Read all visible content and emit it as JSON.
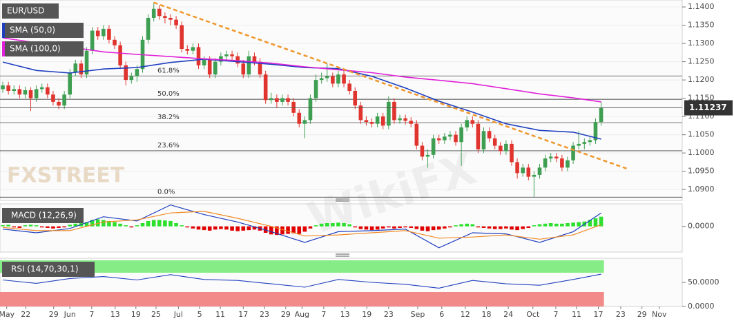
{
  "chart_data": {
    "type": "candlestick",
    "instrument": "EUR/USD",
    "up_color": "#3e9e52",
    "down_color": "#e0342e",
    "grid": true,
    "xlim": [
      -0.5,
      121.5
    ],
    "xticks": [
      {
        "value": 0.7,
        "label": "May"
      },
      {
        "value": 4.1,
        "label": "22"
      },
      {
        "value": 9.1,
        "label": "29"
      },
      {
        "value": 12.0,
        "label": "Jun"
      },
      {
        "value": 15.9,
        "label": "7"
      },
      {
        "value": 20.1,
        "label": "13"
      },
      {
        "value": 23.8,
        "label": "19"
      },
      {
        "value": 27.4,
        "label": "25"
      },
      {
        "value": 31.4,
        "label": "Jul"
      },
      {
        "value": 35.2,
        "label": "5"
      },
      {
        "value": 38.9,
        "label": "11"
      },
      {
        "value": 43.0,
        "label": "17"
      },
      {
        "value": 46.8,
        "label": "23"
      },
      {
        "value": 50.6,
        "label": "29"
      },
      {
        "value": 53.5,
        "label": "Aug"
      },
      {
        "value": 57.4,
        "label": "7"
      },
      {
        "value": 61.2,
        "label": "13"
      },
      {
        "value": 65.1,
        "label": "19"
      },
      {
        "value": 69.0,
        "label": "23"
      },
      {
        "value": 74.2,
        "label": "Sep"
      },
      {
        "value": 78.5,
        "label": "6"
      },
      {
        "value": 82.7,
        "label": "12"
      },
      {
        "value": 86.5,
        "label": "18"
      },
      {
        "value": 90.4,
        "label": "24"
      },
      {
        "value": 94.8,
        "label": "Oct"
      },
      {
        "value": 98.9,
        "label": "7"
      },
      {
        "value": 102.6,
        "label": "11"
      },
      {
        "value": 106.5,
        "label": "17"
      },
      {
        "value": 110.5,
        "label": "23"
      },
      {
        "value": 114.3,
        "label": "29"
      },
      {
        "value": 117.4,
        "label": "Nov"
      }
    ],
    "ylim": [
      1.0872,
      1.1419
    ],
    "yticks": [
      {
        "value": 1.09,
        "label": "1.0900"
      },
      {
        "value": 1.095,
        "label": "1.0950"
      },
      {
        "value": 1.1,
        "label": "1.1000"
      },
      {
        "value": 1.105,
        "label": "1.1050"
      },
      {
        "value": 1.11,
        "label": "1.1100"
      },
      {
        "value": 1.115,
        "label": "1.1150"
      },
      {
        "value": 1.12,
        "label": "1.1200"
      },
      {
        "value": 1.125,
        "label": "1.1250"
      },
      {
        "value": 1.13,
        "label": "1.1300"
      },
      {
        "value": 1.135,
        "label": "1.1350"
      },
      {
        "value": 1.14,
        "label": "1.1400"
      }
    ],
    "ohlc": [
      [
        1.1175,
        1.1195,
        1.1165,
        1.1185
      ],
      [
        1.1185,
        1.1195,
        1.116,
        1.117
      ],
      [
        1.117,
        1.1185,
        1.116,
        1.1175
      ],
      [
        1.1175,
        1.1185,
        1.115,
        1.116
      ],
      [
        1.116,
        1.1182,
        1.115,
        1.1172
      ],
      [
        1.1172,
        1.118,
        1.1115,
        1.115
      ],
      [
        1.115,
        1.1185,
        1.114,
        1.1175
      ],
      [
        1.1175,
        1.119,
        1.1165,
        1.118
      ],
      [
        1.118,
        1.119,
        1.115,
        1.116
      ],
      [
        1.116,
        1.117,
        1.113,
        1.114
      ],
      [
        1.114,
        1.115,
        1.112,
        1.113
      ],
      [
        1.113,
        1.117,
        1.112,
        1.116
      ],
      [
        1.116,
        1.123,
        1.115,
        1.122
      ],
      [
        1.122,
        1.1255,
        1.121,
        1.1245
      ],
      [
        1.1245,
        1.1255,
        1.1205,
        1.1215
      ],
      [
        1.1215,
        1.129,
        1.1205,
        1.128
      ],
      [
        1.128,
        1.1345,
        1.127,
        1.1335
      ],
      [
        1.1335,
        1.1345,
        1.131,
        1.132
      ],
      [
        1.132,
        1.135,
        1.131,
        1.134
      ],
      [
        1.134,
        1.135,
        1.13,
        1.131
      ],
      [
        1.131,
        1.132,
        1.1285,
        1.1295
      ],
      [
        1.1295,
        1.1305,
        1.123,
        1.124
      ],
      [
        1.124,
        1.125,
        1.1185,
        1.12
      ],
      [
        1.12,
        1.122,
        1.119,
        1.121
      ],
      [
        1.121,
        1.124,
        1.1195,
        1.123
      ],
      [
        1.123,
        1.132,
        1.122,
        1.131
      ],
      [
        1.131,
        1.138,
        1.13,
        1.137
      ],
      [
        1.137,
        1.1412,
        1.136,
        1.1395
      ],
      [
        1.1395,
        1.1405,
        1.1365,
        1.1375
      ],
      [
        1.1375,
        1.1385,
        1.1355,
        1.137
      ],
      [
        1.137,
        1.138,
        1.135,
        1.1365
      ],
      [
        1.1365,
        1.1375,
        1.134,
        1.135
      ],
      [
        1.135,
        1.136,
        1.1275,
        1.1285
      ],
      [
        1.1285,
        1.1295,
        1.127,
        1.128
      ],
      [
        1.128,
        1.13,
        1.127,
        1.129
      ],
      [
        1.129,
        1.13,
        1.123,
        1.124
      ],
      [
        1.124,
        1.1265,
        1.123,
        1.1255
      ],
      [
        1.1255,
        1.1265,
        1.1205,
        1.1215
      ],
      [
        1.1215,
        1.126,
        1.1205,
        1.125
      ],
      [
        1.125,
        1.1275,
        1.124,
        1.1265
      ],
      [
        1.1265,
        1.128,
        1.1255,
        1.127
      ],
      [
        1.127,
        1.128,
        1.1255,
        1.1265
      ],
      [
        1.1265,
        1.1275,
        1.1235,
        1.1245
      ],
      [
        1.1245,
        1.1255,
        1.1205,
        1.1215
      ],
      [
        1.1215,
        1.128,
        1.1205,
        1.1265
      ],
      [
        1.1265,
        1.1275,
        1.124,
        1.125
      ],
      [
        1.125,
        1.126,
        1.1205,
        1.1215
      ],
      [
        1.1215,
        1.1225,
        1.1135,
        1.1145
      ],
      [
        1.1145,
        1.1165,
        1.1135,
        1.115
      ],
      [
        1.115,
        1.116,
        1.1125,
        1.114
      ],
      [
        1.114,
        1.116,
        1.113,
        1.115
      ],
      [
        1.115,
        1.116,
        1.113,
        1.114
      ],
      [
        1.114,
        1.115,
        1.11,
        1.111
      ],
      [
        1.111,
        1.112,
        1.107,
        1.108
      ],
      [
        1.108,
        1.11,
        1.104,
        1.109
      ],
      [
        1.109,
        1.116,
        1.108,
        1.115
      ],
      [
        1.115,
        1.1215,
        1.114,
        1.12
      ],
      [
        1.12,
        1.122,
        1.119,
        1.1205
      ],
      [
        1.1205,
        1.1245,
        1.1195,
        1.121
      ],
      [
        1.121,
        1.122,
        1.118,
        1.119
      ],
      [
        1.119,
        1.1225,
        1.118,
        1.1215
      ],
      [
        1.1215,
        1.1225,
        1.118,
        1.119
      ],
      [
        1.119,
        1.12,
        1.116,
        1.117
      ],
      [
        1.117,
        1.118,
        1.112,
        1.113
      ],
      [
        1.113,
        1.114,
        1.108,
        1.109
      ],
      [
        1.109,
        1.11,
        1.1075,
        1.1085
      ],
      [
        1.1085,
        1.1095,
        1.107,
        1.108
      ],
      [
        1.108,
        1.111,
        1.107,
        1.11
      ],
      [
        1.11,
        1.111,
        1.1065,
        1.1075
      ],
      [
        1.1075,
        1.1155,
        1.1065,
        1.114
      ],
      [
        1.114,
        1.115,
        1.108,
        1.109
      ],
      [
        1.109,
        1.1105,
        1.108,
        1.1095
      ],
      [
        1.1095,
        1.1105,
        1.1078,
        1.1088
      ],
      [
        1.1088,
        1.1098,
        1.107,
        1.108
      ],
      [
        1.108,
        1.109,
        1.101,
        1.102
      ],
      [
        1.102,
        1.103,
        1.098,
        1.099
      ],
      [
        1.099,
        1.101,
        1.096,
        1.0995
      ],
      [
        1.0995,
        1.105,
        1.0985,
        1.104
      ],
      [
        1.104,
        1.105,
        1.1025,
        1.1035
      ],
      [
        1.1035,
        1.1055,
        1.1025,
        1.1045
      ],
      [
        1.1045,
        1.106,
        1.1035,
        1.105
      ],
      [
        1.105,
        1.106,
        1.102,
        1.103
      ],
      [
        1.103,
        1.108,
        1.0965,
        1.107
      ],
      [
        1.107,
        1.11,
        1.106,
        1.109
      ],
      [
        1.109,
        1.11,
        1.107,
        1.108
      ],
      [
        1.108,
        1.109,
        1.1,
        1.101
      ],
      [
        1.101,
        1.107,
        1.1,
        1.106
      ],
      [
        1.106,
        1.107,
        1.103,
        1.104
      ],
      [
        1.104,
        1.105,
        1.101,
        1.102
      ],
      [
        1.102,
        1.103,
        1.0995,
        1.1005
      ],
      [
        1.1005,
        1.1035,
        1.0995,
        1.1025
      ],
      [
        1.1025,
        1.1035,
        1.0965,
        1.0975
      ],
      [
        1.0975,
        1.0985,
        1.093,
        1.0945
      ],
      [
        1.0945,
        1.097,
        1.0935,
        1.096
      ],
      [
        1.096,
        1.097,
        1.0925,
        1.0935
      ],
      [
        1.0935,
        1.095,
        1.088,
        1.094
      ],
      [
        1.094,
        1.097,
        1.093,
        1.096
      ],
      [
        1.096,
        1.0995,
        1.095,
        1.0985
      ],
      [
        1.0985,
        1.1,
        1.0975,
        1.099
      ],
      [
        1.099,
        1.1,
        1.0975,
        1.0985
      ],
      [
        1.0985,
        1.0995,
        1.095,
        1.096
      ],
      [
        1.096,
        1.099,
        1.095,
        1.098
      ],
      [
        1.098,
        1.103,
        1.097,
        1.102
      ],
      [
        1.102,
        1.106,
        1.101,
        1.1025
      ],
      [
        1.1025,
        1.104,
        1.101,
        1.103
      ],
      [
        1.103,
        1.1045,
        1.102,
        1.1035
      ],
      [
        1.1035,
        1.1095,
        1.1025,
        1.1085
      ],
      [
        1.1085,
        1.114,
        1.1075,
        1.11237
      ]
    ],
    "overlays": [
      {
        "name": "SMA (50,0)",
        "color": "#1f3fbf",
        "x": [
          0,
          6,
          12,
          18,
          24,
          30,
          36,
          42,
          48,
          54,
          60,
          66,
          72,
          78,
          84,
          90,
          96,
          102,
          107
        ],
        "values": [
          1.1249,
          1.1226,
          1.1219,
          1.123,
          1.1234,
          1.1248,
          1.1257,
          1.125,
          1.1243,
          1.1234,
          1.1231,
          1.121,
          1.1178,
          1.1142,
          1.1112,
          1.108,
          1.1062,
          1.1057,
          1.1038
        ]
      },
      {
        "name": "SMA (100,0)",
        "color": "#e020d8",
        "x": [
          0,
          6,
          12,
          18,
          24,
          30,
          36,
          42,
          48,
          54,
          60,
          66,
          72,
          78,
          84,
          90,
          96,
          102,
          107
        ],
        "values": [
          1.1315,
          1.1302,
          1.129,
          1.1277,
          1.127,
          1.1264,
          1.1258,
          1.1253,
          1.1246,
          1.1236,
          1.1228,
          1.122,
          1.1208,
          1.1199,
          1.119,
          1.1176,
          1.1162,
          1.1151,
          1.114
        ]
      }
    ],
    "trendline": {
      "color": "#f0962a",
      "x": [
        27,
        112
      ],
      "values": [
        1.1412,
        1.0955
      ]
    },
    "fibonacci": {
      "labels": [
        "0.0%",
        "23.6%",
        "38.2%",
        "50.0%",
        "61.8%"
      ],
      "values": [
        1.0879,
        1.1006,
        1.1083,
        1.1147,
        1.1211
      ]
    },
    "last_price": 1.11237,
    "macd": {
      "label": "MACD (12,26,9)",
      "ylim": [
        -0.0048,
        0.0042
      ],
      "yticks": [
        {
          "value": 0,
          "label": "0.0000"
        }
      ],
      "up_color": "#2ee02e",
      "down_color": "#e00000",
      "histogram": [
        0.0002,
        0.0003,
        -0.0002,
        -0.0003,
        0.0002,
        0.0003,
        0.0002,
        -0.0002,
        -0.0003,
        -0.0004,
        -0.0003,
        -0.0002,
        0.0003,
        0.0005,
        0.0006,
        0.0008,
        0.0012,
        0.0013,
        0.0012,
        0.001,
        0.0008,
        0.0005,
        0.0002,
        -0.0002,
        0.0002,
        0.0006,
        0.001,
        0.0012,
        0.0012,
        0.0011,
        0.001,
        0.0006,
        0.0002,
        -0.0002,
        -0.0004,
        -0.0006,
        -0.0007,
        -0.0008,
        -0.0006,
        -0.0005,
        -0.0006,
        -0.0008,
        -0.0009,
        -0.0008,
        -0.0007,
        -0.0006,
        -0.0008,
        -0.0012,
        -0.0015,
        -0.0016,
        -0.0015,
        -0.0014,
        -0.0013,
        -0.0014,
        -0.001,
        -0.0004,
        0.0002,
        0.0005,
        0.0006,
        0.0006,
        0.0007,
        0.0006,
        0.0004,
        -0.0002,
        -0.0005,
        -0.0006,
        -0.0007,
        -0.0006,
        -0.0004,
        -0.0002,
        -0.0004,
        -0.0003,
        -0.0002,
        -0.0003,
        -0.0005,
        -0.0008,
        -0.0009,
        -0.0007,
        -0.0006,
        -0.0004,
        -0.0002,
        0.0002,
        0.0004,
        0.0005,
        0.0004,
        -0.0002,
        -0.0003,
        -0.0004,
        -0.0005,
        -0.0005,
        -0.0004,
        -0.0006,
        -0.0007,
        -0.0005,
        -0.0003,
        0.0002,
        0.0004,
        0.0005,
        0.0006,
        0.0005,
        0.0005,
        0.0006,
        0.0007,
        0.0008,
        0.0009,
        0.0012,
        0.0015,
        0.0018
      ],
      "lines": [
        {
          "color": "#1f3fbf",
          "x": [
            0,
            6,
            12,
            18,
            24,
            30,
            36,
            42,
            48,
            54,
            60,
            66,
            72,
            78,
            84,
            90,
            96,
            102,
            107
          ],
          "values": [
            -0.0005,
            -0.0012,
            -0.0004,
            0.0018,
            0.001,
            0.004,
            0.0022,
            0.0008,
            -0.001,
            -0.003,
            -0.001,
            -0.0008,
            -0.0005,
            -0.004,
            -0.0012,
            -0.0014,
            -0.003,
            -0.001,
            0.0025
          ]
        },
        {
          "color": "#f08a24",
          "x": [
            0,
            6,
            12,
            18,
            24,
            30,
            36,
            42,
            48,
            54,
            60,
            66,
            72,
            78,
            84,
            90,
            96,
            102,
            107
          ],
          "values": [
            -0.0002,
            -0.0008,
            -0.0008,
            0.0008,
            0.0012,
            0.0025,
            0.0028,
            0.0015,
            0.0,
            -0.0018,
            -0.0016,
            -0.0012,
            -0.0008,
            -0.0022,
            -0.002,
            -0.0016,
            -0.0024,
            -0.0016,
            0.0003
          ]
        }
      ]
    },
    "rsi": {
      "label": "RSI (14,70,30,1)",
      "ylim": [
        0,
        100
      ],
      "yticks": [
        {
          "value": 50,
          "label": "50.0000"
        },
        {
          "value": 0,
          "label": "0.0000"
        }
      ],
      "overbought": 70,
      "oversold": 30,
      "overbought_color": "#86ec86",
      "oversold_color": "#f28a8a",
      "line": {
        "color": "#1f3fbf",
        "x": [
          0,
          6,
          12,
          18,
          24,
          30,
          36,
          42,
          48,
          54,
          60,
          66,
          72,
          78,
          84,
          90,
          96,
          102,
          107
        ],
        "values": [
          55,
          48,
          58,
          62,
          55,
          66,
          56,
          54,
          47,
          40,
          56,
          50,
          46,
          38,
          54,
          47,
          44,
          56,
          67
        ]
      }
    },
    "watermarks": [
      "FXSTREET",
      "WikiFX"
    ]
  }
}
